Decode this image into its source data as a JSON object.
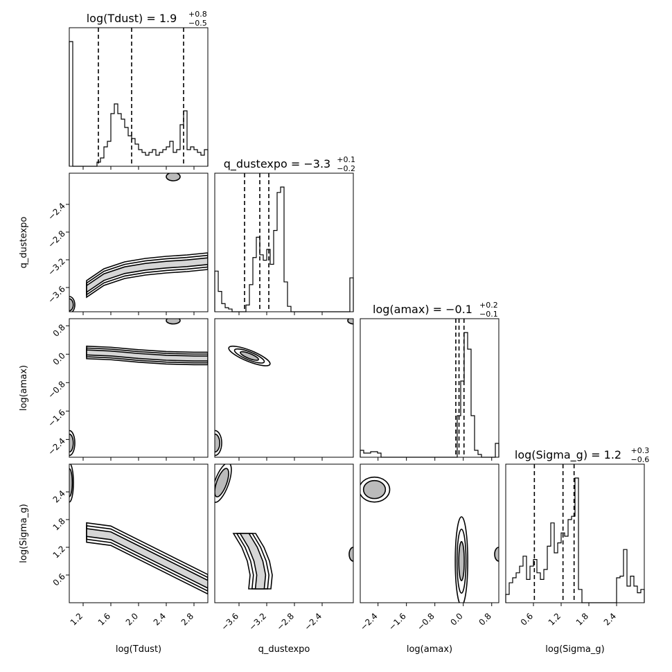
{
  "chart_data": {
    "type": "corner",
    "parameters": [
      {
        "name": "log(Tdust)",
        "title": "log(Tdust) = 1.9",
        "median": 1.9,
        "err_plus": "+0.8",
        "err_minus": "−0.5",
        "quantiles": [
          1.42,
          1.9,
          2.65
        ],
        "range": [
          1.0,
          3.0
        ]
      },
      {
        "name": "q_dustexpo",
        "title": "q_dustexpo = −3.3",
        "median": -3.3,
        "err_plus": "+0.1",
        "err_minus": "−0.2",
        "quantiles": [
          -3.52,
          -3.3,
          -3.17
        ],
        "range": [
          -3.95,
          -1.95
        ]
      },
      {
        "name": "log(amax)",
        "title": "log(amax) = −0.1",
        "median": -0.1,
        "err_plus": "+0.2",
        "err_minus": "−0.1",
        "quantiles": [
          -0.21,
          -0.12,
          0.02
        ],
        "range": [
          -2.9,
          1.0
        ]
      },
      {
        "name": "log(Sigma_g)",
        "title": "log(Sigma_g) = 1.2",
        "median": 1.2,
        "err_plus": "+0.3",
        "err_minus": "−0.6",
        "quantiles": [
          0.62,
          1.24,
          1.48
        ],
        "range": [
          0.0,
          3.0
        ]
      }
    ],
    "ticks": [
      [
        "1.2",
        "1.6",
        "2.0",
        "2.4",
        "2.8"
      ],
      [
        "−3.6",
        "−3.2",
        "−2.8",
        "−2.4"
      ],
      [
        "−2.4",
        "−1.6",
        "−0.8",
        "0.0",
        "0.8"
      ],
      [
        "0.6",
        "1.2",
        "1.8",
        "2.4"
      ]
    ],
    "tick_values": [
      [
        1.2,
        1.6,
        2.0,
        2.4,
        2.8
      ],
      [
        -3.6,
        -3.2,
        -2.8,
        -2.4
      ],
      [
        -2.4,
        -1.6,
        -0.8,
        0.0,
        0.8
      ],
      [
        0.6,
        1.2,
        1.8,
        2.4
      ]
    ],
    "histograms": [
      {
        "bins": 40,
        "values": [
          90,
          0,
          0,
          0,
          0,
          0,
          0,
          0,
          3,
          6,
          14,
          18,
          38,
          45,
          38,
          34,
          28,
          22,
          20,
          16,
          12,
          10,
          8,
          10,
          12,
          8,
          10,
          12,
          14,
          18,
          10,
          12,
          30,
          40,
          12,
          14,
          12,
          10,
          8,
          12
        ]
      },
      {
        "bins": 40,
        "values": [
          30,
          15,
          6,
          3,
          2,
          0,
          0,
          0,
          0,
          5,
          20,
          40,
          55,
          42,
          38,
          46,
          35,
          60,
          88,
          92,
          22,
          4,
          0,
          0,
          0,
          0,
          0,
          0,
          0,
          0,
          0,
          0,
          0,
          0,
          0,
          0,
          0,
          0,
          0,
          25
        ]
      },
      {
        "bins": 40,
        "values": [
          5,
          3,
          3,
          4,
          4,
          3,
          0,
          0,
          0,
          0,
          0,
          0,
          0,
          0,
          0,
          0,
          0,
          0,
          0,
          0,
          0,
          0,
          0,
          0,
          0,
          0,
          0,
          0,
          30,
          55,
          90,
          78,
          30,
          5,
          2,
          0,
          0,
          0,
          0,
          10
        ]
      },
      {
        "bins": 40,
        "values": [
          5,
          12,
          15,
          18,
          22,
          28,
          14,
          22,
          26,
          18,
          14,
          20,
          34,
          48,
          30,
          36,
          42,
          40,
          50,
          52,
          75,
          8,
          0,
          0,
          0,
          0,
          0,
          0,
          0,
          0,
          0,
          0,
          15,
          16,
          32,
          10,
          16,
          10,
          6,
          8
        ]
      }
    ],
    "contours": [
      {
        "row": 1,
        "col": 0,
        "description": "curved ridge from log(Tdust)~1.35,q~-3.65 to log(Tdust)~3.0,q~-3.25"
      },
      {
        "row": 2,
        "col": 0,
        "description": "horizontal band at log(amax)~0.0 from log(Tdust)~1.3 to 3.0"
      },
      {
        "row": 2,
        "col": 1,
        "description": "compact blob from q~-3.65,log(amax)~0.1 to q~-3.2,log(amax)~-0.2"
      },
      {
        "row": 3,
        "col": 0,
        "description": "diagonal band from log(Tdust)~1.3,log(Sigma_g)~1.5 to log(Tdust)~3.0,log(Sigma_g)~0.4"
      },
      {
        "row": 3,
        "col": 1,
        "description": "vertical band at q~-3.3 from log(Sigma_g)~1.5 down to ~0.3"
      },
      {
        "row": 3,
        "col": 2,
        "description": "vertical band at log(amax)~0.0 from log(Sigma_g)~1.5 down to ~0.3"
      }
    ]
  }
}
